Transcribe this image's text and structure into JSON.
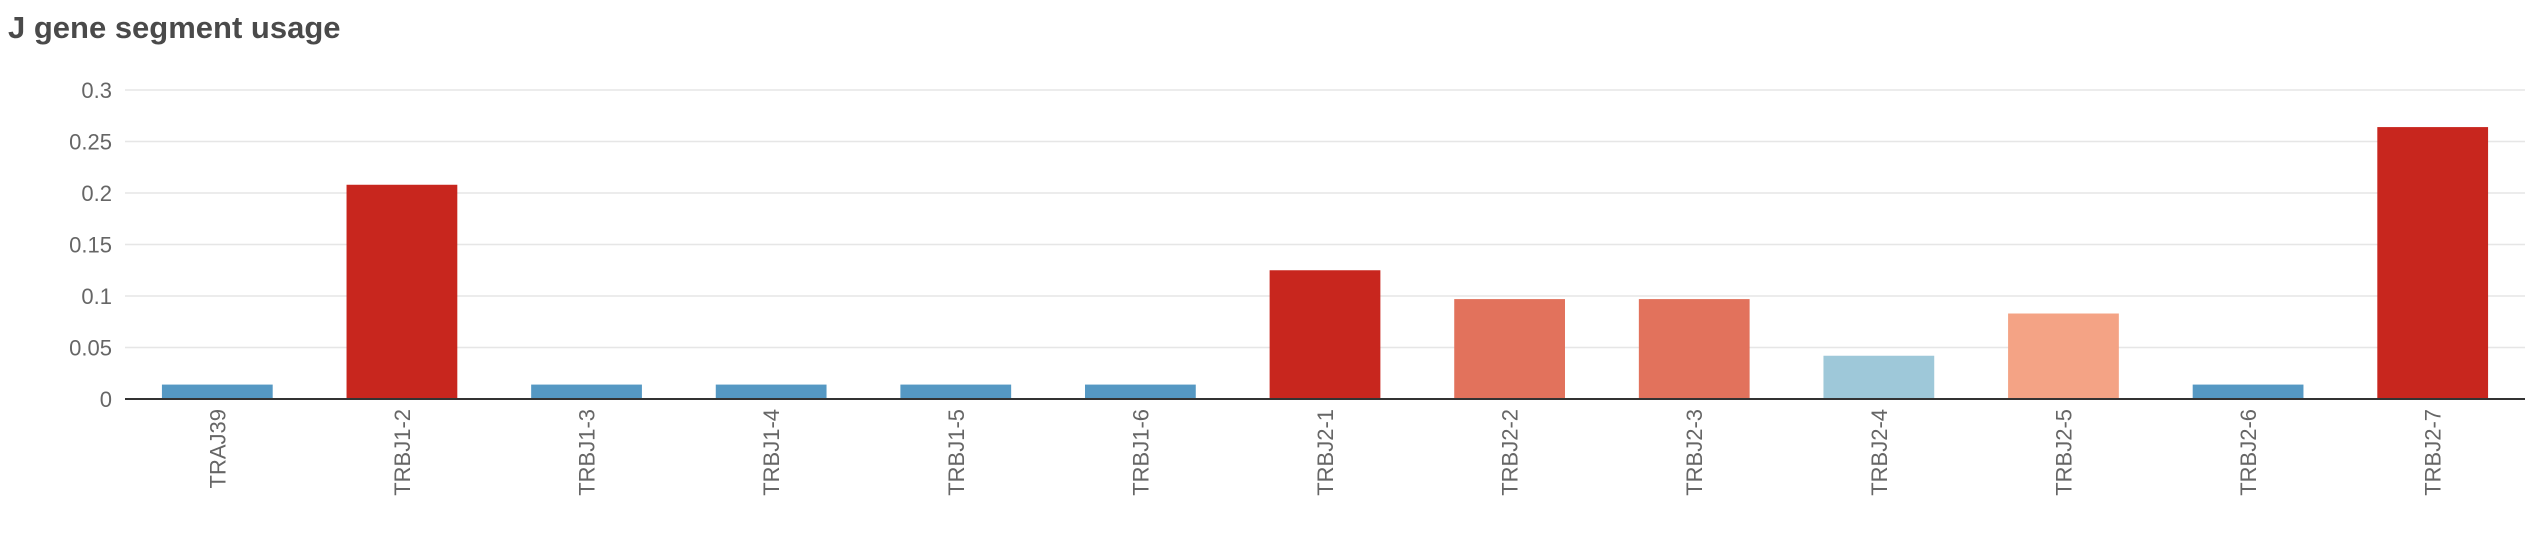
{
  "chart_data": {
    "type": "bar",
    "title": "J gene segment usage",
    "xlabel": "",
    "ylabel": "",
    "categories": [
      "TRAJ39",
      "TRBJ1-2",
      "TRBJ1-3",
      "TRBJ1-4",
      "TRBJ1-5",
      "TRBJ1-6",
      "TRBJ2-1",
      "TRBJ2-2",
      "TRBJ2-3",
      "TRBJ2-4",
      "TRBJ2-5",
      "TRBJ2-6",
      "TRBJ2-7"
    ],
    "values": [
      0.014,
      0.208,
      0.014,
      0.014,
      0.014,
      0.014,
      0.125,
      0.097,
      0.097,
      0.042,
      0.083,
      0.014,
      0.264
    ],
    "bar_colors": [
      "#5598c3",
      "#c8261e",
      "#5598c3",
      "#5598c3",
      "#5598c3",
      "#5598c3",
      "#c8261e",
      "#e2725c",
      "#e2725c",
      "#9ec8d9",
      "#f4a385",
      "#5598c3",
      "#c8261e"
    ],
    "yticks": [
      "0",
      "0.05",
      "0.1",
      "0.15",
      "0.2",
      "0.25",
      "0.3"
    ],
    "ylim": [
      0,
      0.3
    ],
    "grid": true,
    "legend": "none",
    "colors": {
      "title": "#4a4a4a",
      "tick": "#666666",
      "grid": "#e6e6e6",
      "axis": "#333333"
    }
  }
}
